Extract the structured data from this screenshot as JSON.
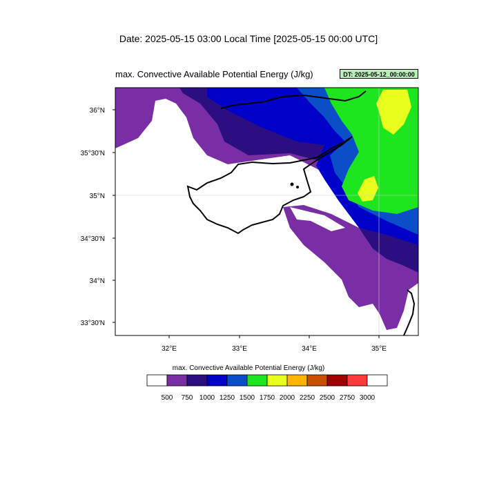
{
  "header": {
    "date_title": "Date: 2025-05-15  03:00 Local Time [2025-05-15  00:00 UTC]",
    "map_title": "max. Convective Available Potential Energy   (J/kg)",
    "dt_badge": "DT: 2025-05-12_00:00:00"
  },
  "map": {
    "lat_labels": [
      "36°N",
      "35°30'N",
      "35°N",
      "34°30'N",
      "34°N",
      "33°30'N"
    ],
    "lon_labels": [
      "32°E",
      "33°E",
      "34°E",
      "35°E"
    ],
    "region_extent": {
      "lon": [
        31.2,
        35.55
      ],
      "lat": [
        33.35,
        36.3
      ]
    }
  },
  "colorbar": {
    "title": "max. Convective Available Potential Energy  (J/kg)",
    "levels": [
      "500",
      "750",
      "1000",
      "1250",
      "1500",
      "1750",
      "2000",
      "2250",
      "2500",
      "2750",
      "3000"
    ],
    "colors": [
      "#ffffff",
      "#7a2ea6",
      "#2b0f80",
      "#0000c8",
      "#0a4fc8",
      "#1ee61e",
      "#e8ff1e",
      "#ffb400",
      "#c85000",
      "#a00000",
      "#ff3a3a",
      "#ffffff"
    ]
  }
}
